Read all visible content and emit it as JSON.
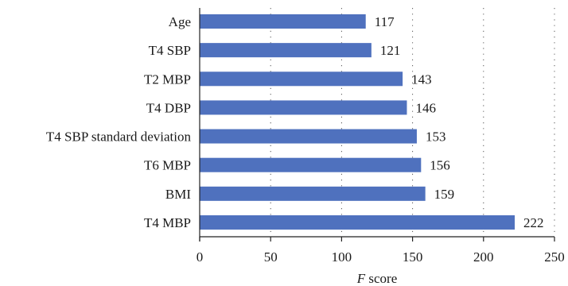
{
  "chart_data": {
    "type": "bar",
    "orientation": "horizontal",
    "categories": [
      "Age",
      "T4 SBP",
      "T2 MBP",
      "T4 DBP",
      "T4 SBP standard deviation",
      "T6 MBP",
      "BMI",
      "T4 MBP"
    ],
    "values": [
      117,
      121,
      143,
      146,
      153,
      156,
      159,
      222
    ],
    "xlabel_italic": "F",
    "xlabel_rest": " score",
    "xlim": [
      0,
      250
    ],
    "xticks": [
      0,
      50,
      100,
      150,
      200,
      250
    ],
    "grid": "vertical dotted",
    "bar_color": "#4f71be"
  }
}
